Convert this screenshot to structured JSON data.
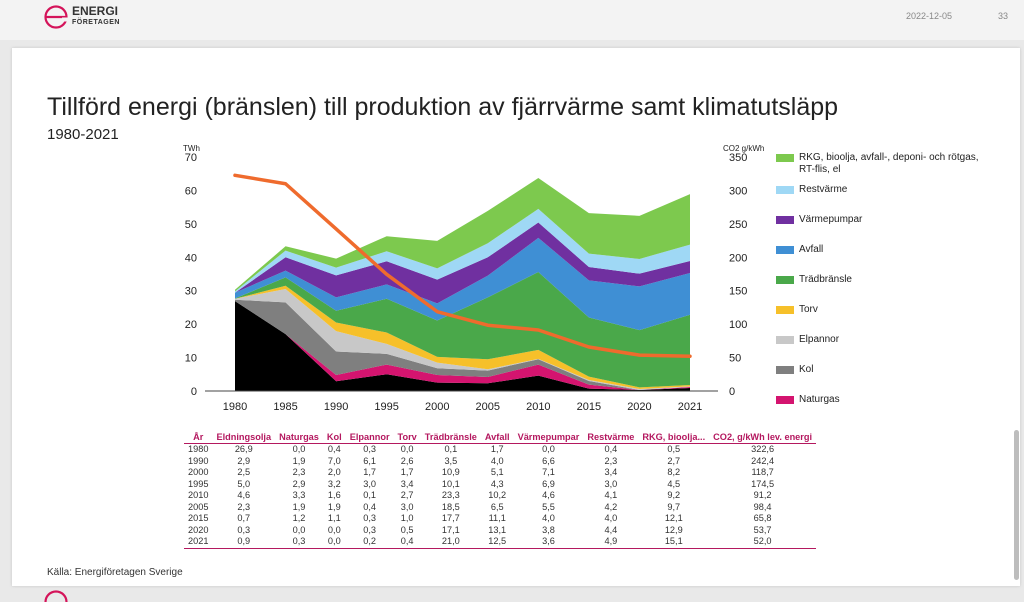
{
  "header": {
    "logo_line1": "ENERGI",
    "logo_line2": "FÖRETAGEN",
    "date": "2022-12-05",
    "page_number": "33"
  },
  "slide": {
    "title": "Tillförd energi (bränslen) till produktion av fjärrvärme samt klimatutsläpp",
    "subtitle": "1980-2021",
    "source": "Källa: Energiföretagen Sverige"
  },
  "colors": {
    "brand": "#d4145a",
    "line": "#ef6b2d"
  },
  "chart_data": {
    "type": "area",
    "x": [
      "1980",
      "1985",
      "1990",
      "1995",
      "2000",
      "2005",
      "2010",
      "2015",
      "2020",
      "2021"
    ],
    "ylabel_left": "TWh",
    "ylim_left": [
      0,
      70
    ],
    "yticks_left": [
      "0",
      "10",
      "20",
      "30",
      "40",
      "50",
      "60",
      "70"
    ],
    "ylabel_right": "CO2 g/kWh",
    "ylim_right": [
      0,
      350
    ],
    "yticks_right": [
      "0",
      "50",
      "100",
      "150",
      "200",
      "250",
      "300",
      "350"
    ],
    "series": [
      {
        "name": "Eldningsolja",
        "color": "#000000",
        "values": [
          26.9,
          17.0,
          2.9,
          5.0,
          2.5,
          2.3,
          4.6,
          0.7,
          0.3,
          0.9
        ]
      },
      {
        "name": "Naturgas",
        "color": "#d4146f",
        "values": [
          0.0,
          0.0,
          1.9,
          2.9,
          2.3,
          1.9,
          3.3,
          1.2,
          0.0,
          0.3
        ]
      },
      {
        "name": "Kol",
        "color": "#7f7f7f",
        "values": [
          0.4,
          9.5,
          7.0,
          3.2,
          2.0,
          1.9,
          1.6,
          1.1,
          0.0,
          0.0
        ]
      },
      {
        "name": "Elpannor",
        "color": "#c8c8c8",
        "values": [
          0.3,
          4.0,
          6.1,
          3.0,
          1.7,
          0.4,
          0.1,
          0.3,
          0.3,
          0.2
        ]
      },
      {
        "name": "Torv",
        "color": "#f6c02a",
        "values": [
          0.0,
          1.0,
          2.6,
          3.4,
          1.7,
          3.0,
          2.7,
          1.0,
          0.5,
          0.4
        ]
      },
      {
        "name": "Trädbränsle",
        "color": "#4aa84a",
        "values": [
          0.1,
          2.5,
          3.5,
          10.1,
          10.9,
          18.5,
          23.3,
          17.7,
          17.1,
          21.0
        ]
      },
      {
        "name": "Avfall",
        "color": "#3f8fd4",
        "values": [
          1.7,
          2.0,
          4.0,
          4.3,
          5.1,
          6.5,
          10.2,
          11.1,
          13.1,
          12.5
        ]
      },
      {
        "name": "Värmepumpar",
        "color": "#7030a0",
        "values": [
          0.0,
          4.0,
          6.6,
          6.9,
          7.1,
          5.5,
          4.6,
          4.0,
          3.8,
          3.6
        ]
      },
      {
        "name": "Restvärme",
        "color": "#9fd8f5",
        "values": [
          0.4,
          2.0,
          2.3,
          3.0,
          3.4,
          4.2,
          4.1,
          4.0,
          4.4,
          4.9
        ]
      },
      {
        "name": "RKG, bioolja, avfall-, deponi- och rötgas, RT-flis, el",
        "color": "#7dc94e",
        "values": [
          0.5,
          1.3,
          2.7,
          4.5,
          8.2,
          9.7,
          9.2,
          12.1,
          12.9,
          15.1
        ]
      }
    ],
    "line_series": {
      "name": "CO2, g/kWh lev. energi",
      "color": "#ef6b2d",
      "values": [
        322.6,
        310.0,
        242.4,
        174.5,
        118.7,
        98.4,
        91.2,
        65.8,
        53.7,
        52.0
      ]
    },
    "legend_placement": "right",
    "legend_entries": [
      "RKG, bioolja, avfall-, deponi- och rötgas, RT-flis, el",
      "Restvärme",
      "Värmepumpar",
      "Avfall",
      "Trädbränsle",
      "Torv",
      "Elpannor",
      "Kol",
      "Naturgas"
    ],
    "legend_colors": [
      "#7dc94e",
      "#9fd8f5",
      "#7030a0",
      "#3f8fd4",
      "#4aa84a",
      "#f6c02a",
      "#c8c8c8",
      "#7f7f7f",
      "#d4146f"
    ],
    "grid": false
  },
  "table": {
    "headers": [
      "År",
      "Eldningsolja",
      "Naturgas",
      "Kol",
      "Elpannor",
      "Torv",
      "Trädbränsle",
      "Avfall",
      "Värmepumpar",
      "Restvärme",
      "RKG, bioolja...",
      "CO2, g/kWh lev. energi"
    ],
    "rows": [
      [
        "1980",
        "26,9",
        "0,0",
        "0,4",
        "0,3",
        "0,0",
        "0,1",
        "1,7",
        "0,0",
        "0,4",
        "0,5",
        "322,6"
      ],
      [
        "1990",
        "2,9",
        "1,9",
        "7,0",
        "6,1",
        "2,6",
        "3,5",
        "4,0",
        "6,6",
        "2,3",
        "2,7",
        "242,4"
      ],
      [
        "2000",
        "2,5",
        "2,3",
        "2,0",
        "1,7",
        "1,7",
        "10,9",
        "5,1",
        "7,1",
        "3,4",
        "8,2",
        "118,7"
      ],
      [
        "1995",
        "5,0",
        "2,9",
        "3,2",
        "3,0",
        "3,4",
        "10,1",
        "4,3",
        "6,9",
        "3,0",
        "4,5",
        "174,5"
      ],
      [
        "2010",
        "4,6",
        "3,3",
        "1,6",
        "0,1",
        "2,7",
        "23,3",
        "10,2",
        "4,6",
        "4,1",
        "9,2",
        "91,2"
      ],
      [
        "2005",
        "2,3",
        "1,9",
        "1,9",
        "0,4",
        "3,0",
        "18,5",
        "6,5",
        "5,5",
        "4,2",
        "9,7",
        "98,4"
      ],
      [
        "2015",
        "0,7",
        "1,2",
        "1,1",
        "0,3",
        "1,0",
        "17,7",
        "11,1",
        "4,0",
        "4,0",
        "12,1",
        "65,8"
      ],
      [
        "2020",
        "0,3",
        "0,0",
        "0,0",
        "0,3",
        "0,5",
        "17,1",
        "13,1",
        "3,8",
        "4,4",
        "12,9",
        "53,7"
      ],
      [
        "2021",
        "0,9",
        "0,3",
        "0,0",
        "0,2",
        "0,4",
        "21,0",
        "12,5",
        "3,6",
        "4,9",
        "15,1",
        "52,0"
      ]
    ]
  }
}
